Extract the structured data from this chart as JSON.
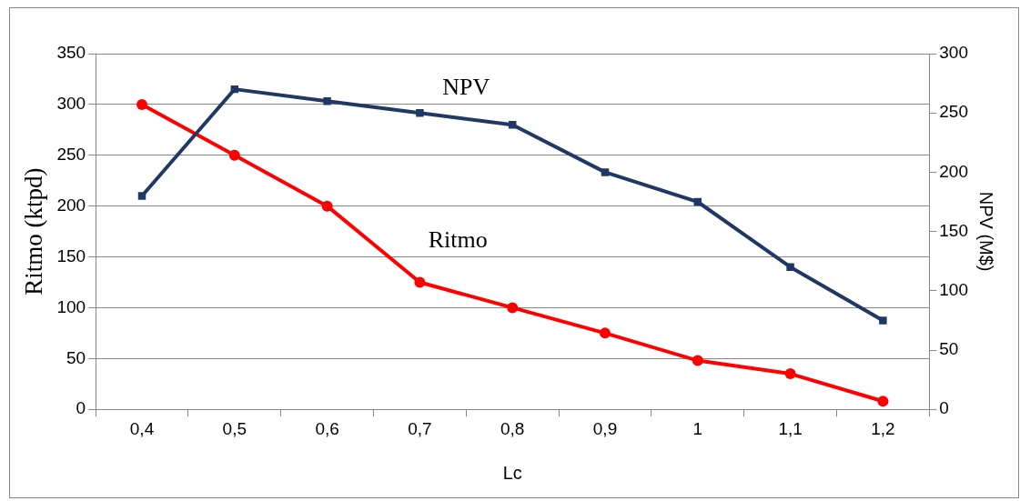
{
  "chart_data": {
    "type": "line",
    "xlabel": "Lc",
    "ylabel": "Ritmo (ktpd)",
    "y2label": "NPV (M$)",
    "categories": [
      "0,4",
      "0,5",
      "0,6",
      "0,7",
      "0,8",
      "0,9",
      "1",
      "1,1",
      "1,2"
    ],
    "series": [
      {
        "name": "NPV",
        "color": "#1f3864",
        "axis": "y2",
        "marker": "square",
        "values": [
          180,
          270,
          260,
          250,
          240,
          200,
          175,
          120,
          75
        ]
      },
      {
        "name": "Ritmo",
        "color": "#ff0000",
        "axis": "y",
        "marker": "circle",
        "values": [
          300,
          250,
          200,
          125,
          100,
          75,
          48,
          35,
          8
        ]
      }
    ],
    "ylim": [
      0,
      350
    ],
    "yticks": [
      0,
      50,
      100,
      150,
      200,
      250,
      300,
      350
    ],
    "y2lim": [
      0,
      300
    ],
    "y2ticks": [
      0,
      50,
      100,
      150,
      200,
      250,
      300
    ],
    "grid": "y",
    "legend": false,
    "line_style": "solid"
  }
}
